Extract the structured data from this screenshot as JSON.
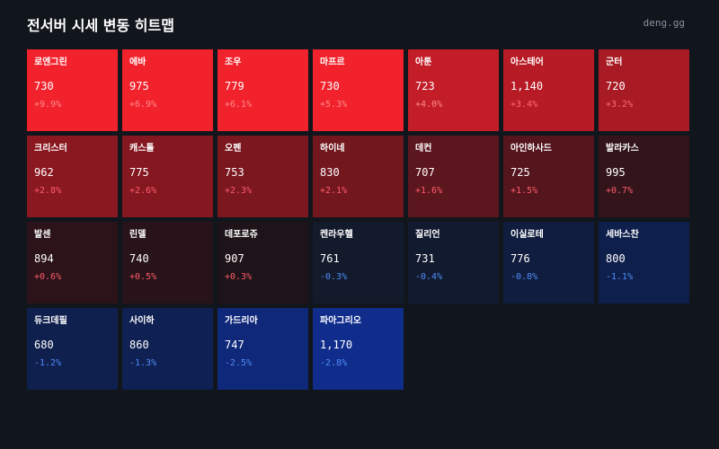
{
  "header": {
    "title": "전서버 시세 변동 히트맵",
    "site": "deng.gg"
  },
  "colors": {
    "background": "#11151c",
    "up_text": "#ff5c6b",
    "up_text_on_bright": "#ff8a8a",
    "down_text": "#4d8df7"
  },
  "tiles": [
    {
      "name": "로엔그린",
      "price": "730",
      "change": "+9.9%",
      "bg": "#f2222c",
      "change_color": "#ff8a8a"
    },
    {
      "name": "에바",
      "price": "975",
      "change": "+6.9%",
      "bg": "#f2222c",
      "change_color": "#ff8a8a"
    },
    {
      "name": "조우",
      "price": "779",
      "change": "+6.1%",
      "bg": "#f2222c",
      "change_color": "#ff8a8a"
    },
    {
      "name": "마프르",
      "price": "730",
      "change": "+5.3%",
      "bg": "#f2222c",
      "change_color": "#ff8a8a"
    },
    {
      "name": "아툰",
      "price": "723",
      "change": "+4.0%",
      "bg": "#c31d27",
      "change_color": "#ff8a8a"
    },
    {
      "name": "아스테어",
      "price": "1,140",
      "change": "+3.4%",
      "bg": "#b71b25",
      "change_color": "#ff6b75"
    },
    {
      "name": "군터",
      "price": "720",
      "change": "+3.2%",
      "bg": "#a81a24",
      "change_color": "#ff6b75"
    },
    {
      "name": "크리스터",
      "price": "962",
      "change": "+2.8%",
      "bg": "#8a1820",
      "change_color": "#ff5c6b"
    },
    {
      "name": "캐스톨",
      "price": "775",
      "change": "+2.6%",
      "bg": "#84171f",
      "change_color": "#ff5c6b"
    },
    {
      "name": "오펜",
      "price": "753",
      "change": "+2.3%",
      "bg": "#7a171f",
      "change_color": "#ff5c6b"
    },
    {
      "name": "하이네",
      "price": "830",
      "change": "+2.1%",
      "bg": "#72171e",
      "change_color": "#ff5c6b"
    },
    {
      "name": "데컨",
      "price": "707",
      "change": "+1.6%",
      "bg": "#5c161d",
      "change_color": "#ff5c6b"
    },
    {
      "name": "아인하사드",
      "price": "725",
      "change": "+1.5%",
      "bg": "#55151c",
      "change_color": "#ff5c6b"
    },
    {
      "name": "발라카스",
      "price": "995",
      "change": "+0.7%",
      "bg": "#32141a",
      "change_color": "#ff5c6b"
    },
    {
      "name": "발센",
      "price": "894",
      "change": "+0.6%",
      "bg": "#2b1319",
      "change_color": "#ff5c6b"
    },
    {
      "name": "린델",
      "price": "740",
      "change": "+0.5%",
      "bg": "#271319",
      "change_color": "#ff5c6b"
    },
    {
      "name": "데포로쥬",
      "price": "907",
      "change": "+0.3%",
      "bg": "#1e1318",
      "change_color": "#ff5c6b"
    },
    {
      "name": "켄라우헬",
      "price": "761",
      "change": "-0.3%",
      "bg": "#121a2c",
      "change_color": "#4d8df7"
    },
    {
      "name": "질리언",
      "price": "731",
      "change": "-0.4%",
      "bg": "#121a2f",
      "change_color": "#4d8df7"
    },
    {
      "name": "이실로테",
      "price": "776",
      "change": "-0.8%",
      "bg": "#111d3f",
      "change_color": "#4d8df7"
    },
    {
      "name": "세바스찬",
      "price": "800",
      "change": "-1.1%",
      "bg": "#0f1f4b",
      "change_color": "#4d8df7"
    },
    {
      "name": "듀크데필",
      "price": "680",
      "change": "-1.2%",
      "bg": "#0f1f4e",
      "change_color": "#4d8df7"
    },
    {
      "name": "사이하",
      "price": "860",
      "change": "-1.3%",
      "bg": "#0f2052",
      "change_color": "#4d8df7"
    },
    {
      "name": "가드리아",
      "price": "747",
      "change": "-2.5%",
      "bg": "#10287a",
      "change_color": "#4d8df7"
    },
    {
      "name": "파아그리오",
      "price": "1,170",
      "change": "-2.8%",
      "bg": "#112d8c",
      "change_color": "#4d8df7"
    }
  ]
}
